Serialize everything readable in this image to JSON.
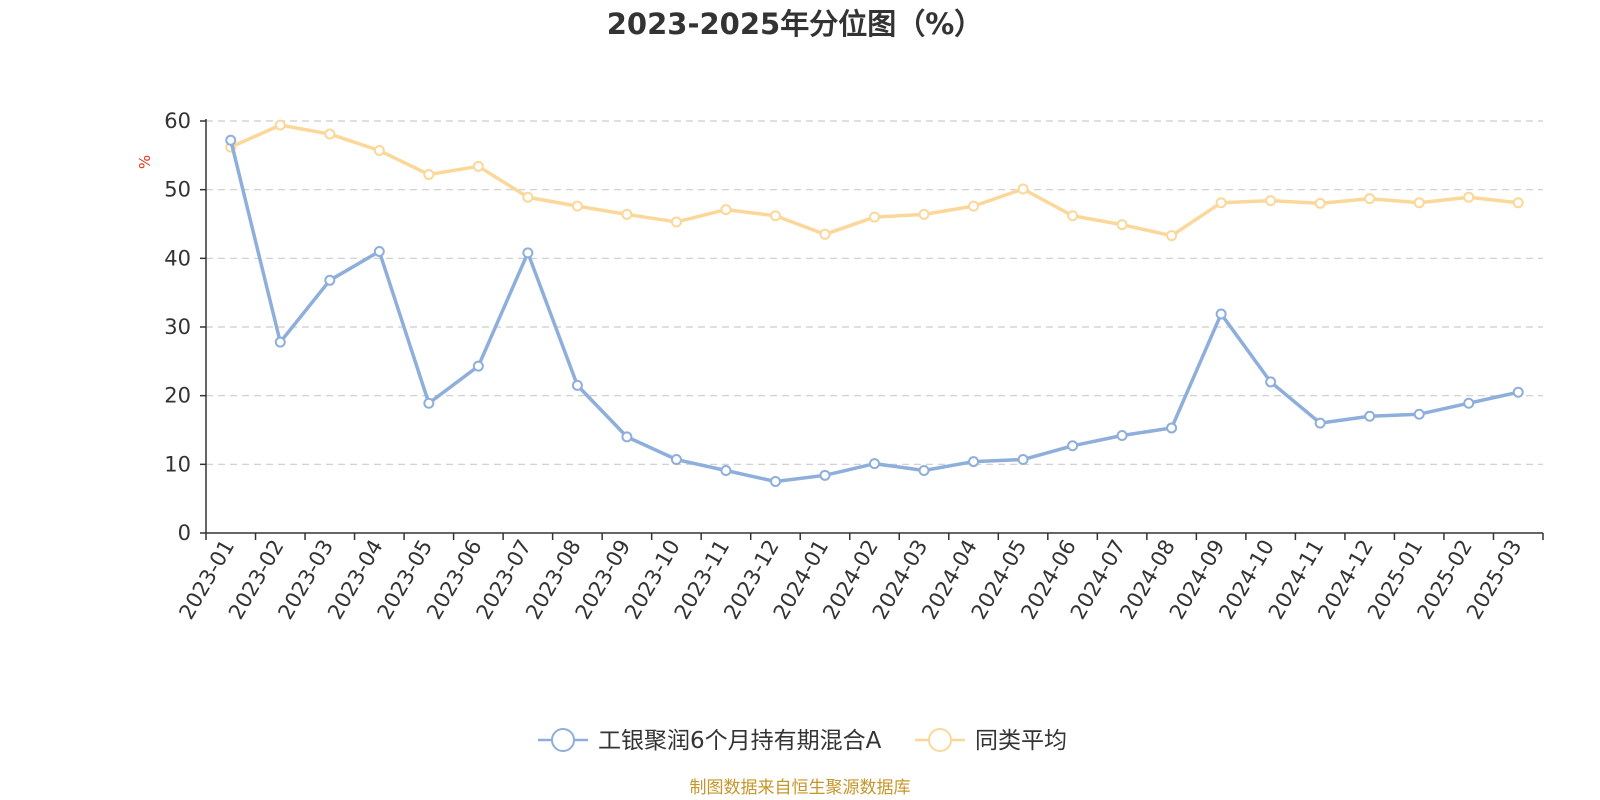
{
  "chart_data": {
    "type": "line",
    "title": "2023-2025年分位图（%）",
    "ylabel": "%",
    "ylim": [
      0,
      60
    ],
    "yticks": [
      0,
      10,
      20,
      30,
      40,
      50,
      60
    ],
    "grid": true,
    "legend_position": "bottom",
    "categories": [
      "2023-01",
      "2023-02",
      "2023-03",
      "2023-04",
      "2023-05",
      "2023-06",
      "2023-07",
      "2023-08",
      "2023-09",
      "2023-10",
      "2023-11",
      "2023-12",
      "2024-01",
      "2024-02",
      "2024-03",
      "2024-04",
      "2024-05",
      "2024-06",
      "2024-07",
      "2024-08",
      "2024-09",
      "2024-10",
      "2024-11",
      "2024-12",
      "2025-01",
      "2025-02",
      "2025-03"
    ],
    "series": [
      {
        "name": "工银聚润6个月持有期混合A",
        "color": "#8eaedb",
        "values": [
          57.2,
          27.8,
          36.8,
          41.0,
          18.9,
          24.3,
          40.8,
          21.5,
          14.0,
          10.7,
          9.1,
          7.5,
          8.4,
          10.1,
          9.1,
          10.4,
          10.7,
          12.7,
          14.2,
          15.3,
          31.9,
          22.0,
          16.0,
          17.0,
          17.3,
          18.9,
          20.5
        ]
      },
      {
        "name": "同类平均",
        "color": "#fbd899",
        "values": [
          56.2,
          59.4,
          58.1,
          55.7,
          52.2,
          53.4,
          48.9,
          47.6,
          46.4,
          45.3,
          47.1,
          46.2,
          43.5,
          46.0,
          46.4,
          47.6,
          50.1,
          46.2,
          44.9,
          43.3,
          48.1,
          48.4,
          48.0,
          48.7,
          48.1,
          48.9,
          48.1
        ]
      }
    ]
  },
  "colors": {
    "ylabel": "#e8341c",
    "source": "#c6962a",
    "grid": "#cccccc",
    "axis": "#333333"
  },
  "footer": {
    "source": "制图数据来自恒生聚源数据库"
  }
}
